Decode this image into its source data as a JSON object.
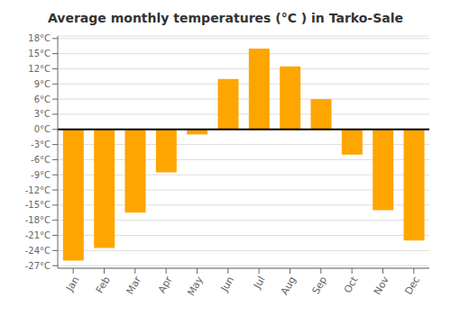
{
  "chart_data": {
    "type": "bar",
    "title": "Average monthly temperatures (°C ) in Tarko-Sale",
    "categories": [
      "Jan",
      "Feb",
      "Mar",
      "Apr",
      "May",
      "Jun",
      "Jul",
      "Aug",
      "Sep",
      "Oct",
      "Nov",
      "Dec"
    ],
    "values": [
      -26,
      -23.5,
      -16.5,
      -8.5,
      -1,
      10,
      16,
      12.5,
      6,
      -5,
      -16,
      -22
    ],
    "color": "#FFA500",
    "ylim": [
      -27.5,
      18.5
    ],
    "yticks": [
      {
        "value": -27,
        "label": "-27°C"
      },
      {
        "value": -24,
        "label": "-24°C"
      },
      {
        "value": -21,
        "label": "-21°C"
      },
      {
        "value": -18,
        "label": "-18°C"
      },
      {
        "value": -15,
        "label": "-15°C"
      },
      {
        "value": -12,
        "label": "-12°C"
      },
      {
        "value": -9,
        "label": "-9°C"
      },
      {
        "value": -6,
        "label": "-6°C"
      },
      {
        "value": -3,
        "label": "-3°C"
      },
      {
        "value": 0,
        "label": "0°C"
      },
      {
        "value": 3,
        "label": "3°C"
      },
      {
        "value": 6,
        "label": "6°C"
      },
      {
        "value": 9,
        "label": "9°C"
      },
      {
        "value": 12,
        "label": "12°C"
      },
      {
        "value": 15,
        "label": "15°C"
      },
      {
        "value": 18,
        "label": "18°C"
      }
    ],
    "grid": true
  }
}
